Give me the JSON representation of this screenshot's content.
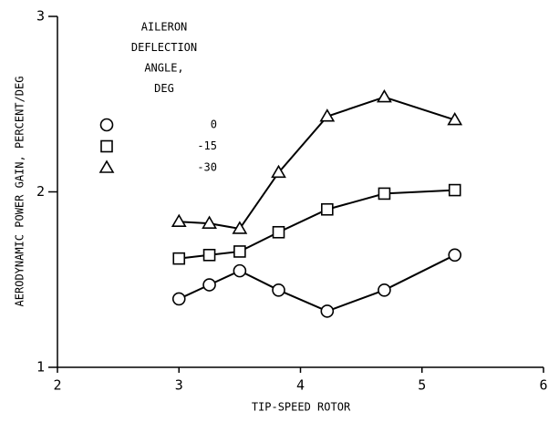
{
  "chart_data": {
    "type": "line",
    "x_label": "TIP-SPEED ROTOR",
    "y_label": "AERODYNAMIC POWER GAIN, PERCENT/DEG",
    "legend_title": [
      "AILERON",
      "DEFLECTION",
      "ANGLE,",
      "DEG"
    ],
    "x": [
      3,
      3.25,
      3.5,
      3.82,
      4.22,
      4.69,
      5.27
    ],
    "series": [
      {
        "name": "0",
        "marker": "circle",
        "color": "#000000",
        "values": [
          1.39,
          1.47,
          1.55,
          1.44,
          1.32,
          1.44,
          1.64
        ]
      },
      {
        "name": "-15",
        "marker": "square",
        "color": "#000000",
        "values": [
          1.62,
          1.64,
          1.66,
          1.77,
          1.9,
          1.99,
          2.01
        ]
      },
      {
        "name": "-30",
        "marker": "triangle",
        "color": "#000000",
        "values": [
          1.83,
          1.82,
          1.79,
          2.11,
          2.43,
          2.54,
          2.41
        ]
      }
    ],
    "xlim": [
      2,
      6
    ],
    "xticks": [
      2,
      3,
      4,
      5,
      6
    ],
    "ylim": [
      1,
      3
    ],
    "yticks": [
      1,
      2,
      3
    ]
  }
}
